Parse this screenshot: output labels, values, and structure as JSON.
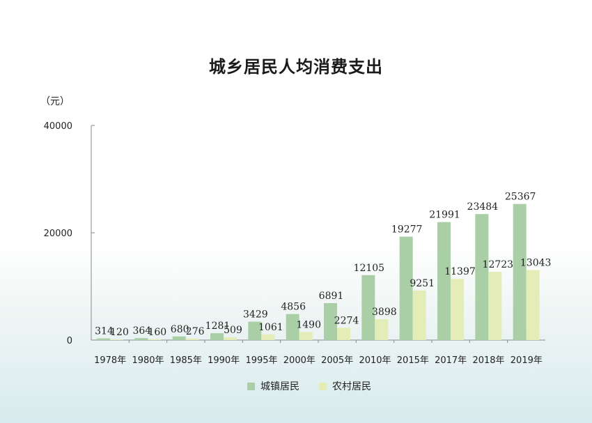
{
  "chart_data": {
    "type": "bar",
    "title": "城乡居民人均消费支出",
    "unit": "（元）",
    "categories": [
      "1978年",
      "1980年",
      "1985年",
      "1990年",
      "1995年",
      "2000年",
      "2005年",
      "2010年",
      "2015年",
      "2017年",
      "2018年",
      "2019年"
    ],
    "series": [
      {
        "name": "城镇居民",
        "color": "#aacfa6",
        "values": [
          314,
          364,
          680,
          1281,
          3429,
          4856,
          6891,
          12105,
          19277,
          21991,
          23484,
          25367
        ]
      },
      {
        "name": "农村居民",
        "color": "#e4ecb7",
        "values": [
          120,
          160,
          276,
          509,
          1061,
          1490,
          2274,
          3898,
          9251,
          11397,
          12723,
          13043
        ]
      }
    ],
    "ylim": [
      0,
      40000
    ],
    "yticks": [
      "0",
      "20000",
      "40000"
    ],
    "grid": false,
    "legend_position": "bottom"
  }
}
